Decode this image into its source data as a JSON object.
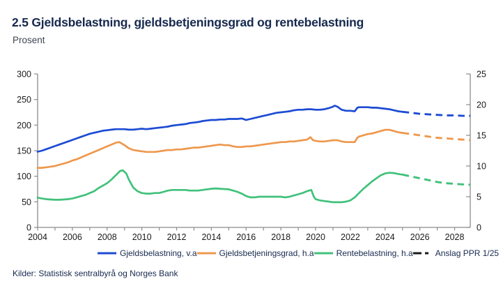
{
  "header": {
    "title": "2.5 Gjeldsbelastning, gjeldsbetjeningsgrad og rentebelastning",
    "subtitle": "Prosent"
  },
  "footer": {
    "source": "Kilder: Statistisk sentralbyrå og Norges Bank"
  },
  "colors": {
    "debt_burden_blue": "#1C4BD4",
    "debt_service_orange": "#EE984E",
    "interest_burden_green": "#41C17B",
    "forecast_black": "#1A1A1A",
    "axis_gray": "#8C8C8C",
    "text_navy": "#17294E"
  },
  "chart_data": {
    "type": "line",
    "title": "2.5 Gjeldsbelastning, gjeldsbetjeningsgrad og rentebelastning",
    "subtitle": "Prosent",
    "grid": false,
    "legend_position": "bottom",
    "x_axis": {
      "min": 2004,
      "max": 2028.9,
      "tick_labels": [
        2004,
        2006,
        2008,
        2010,
        2012,
        2014,
        2016,
        2018,
        2020,
        2022,
        2024,
        2026,
        2028
      ]
    },
    "y_axis_left": {
      "min": 0,
      "max": 300,
      "tick_labels": [
        300,
        250,
        200,
        150,
        100,
        50,
        0
      ]
    },
    "y_axis_right": {
      "min": 0,
      "max": 25,
      "tick_labels": [
        25,
        20,
        15,
        10,
        5,
        0
      ]
    },
    "forecast_start": 2025,
    "forecast_label": "Anslag PPR 1/25",
    "legend": [
      {
        "label": "Gjeldsbelastning, v.a",
        "color": "#1C4BD4",
        "style": "solid"
      },
      {
        "label": "Gjeldsbetjeningsgrad, h.a",
        "color": "#EE984E",
        "style": "solid"
      },
      {
        "label": "Rentebelastning, h.a",
        "color": "#41C17B",
        "style": "solid"
      },
      {
        "label": "Anslag PPR 1/25",
        "color": "#1A1A1A",
        "style": "dashed"
      }
    ],
    "series": [
      {
        "name": "Gjeldsbelastning, v.a",
        "axis": "left",
        "color": "#1C4BD4",
        "solid": [
          [
            2004,
            148
          ],
          [
            2004.25,
            150
          ],
          [
            2004.5,
            153
          ],
          [
            2004.75,
            156
          ],
          [
            2005,
            159
          ],
          [
            2005.25,
            162
          ],
          [
            2005.5,
            165
          ],
          [
            2005.75,
            168
          ],
          [
            2006,
            171
          ],
          [
            2006.25,
            174
          ],
          [
            2006.5,
            177
          ],
          [
            2006.75,
            180
          ],
          [
            2007,
            183
          ],
          [
            2007.25,
            185
          ],
          [
            2007.5,
            187
          ],
          [
            2007.75,
            189
          ],
          [
            2008,
            190
          ],
          [
            2008.25,
            191
          ],
          [
            2008.5,
            192
          ],
          [
            2008.75,
            192
          ],
          [
            2009,
            192
          ],
          [
            2009.25,
            191
          ],
          [
            2009.5,
            191
          ],
          [
            2009.75,
            192
          ],
          [
            2010,
            193
          ],
          [
            2010.25,
            192
          ],
          [
            2010.5,
            193
          ],
          [
            2010.75,
            194
          ],
          [
            2011,
            195
          ],
          [
            2011.25,
            196
          ],
          [
            2011.5,
            197
          ],
          [
            2011.75,
            199
          ],
          [
            2012,
            200
          ],
          [
            2012.25,
            201
          ],
          [
            2012.5,
            202
          ],
          [
            2012.75,
            204
          ],
          [
            2013,
            205
          ],
          [
            2013.25,
            206
          ],
          [
            2013.5,
            208
          ],
          [
            2013.75,
            209
          ],
          [
            2014,
            210
          ],
          [
            2014.25,
            210
          ],
          [
            2014.5,
            211
          ],
          [
            2014.75,
            211
          ],
          [
            2015,
            212
          ],
          [
            2015.25,
            212
          ],
          [
            2015.5,
            212
          ],
          [
            2015.75,
            213
          ],
          [
            2016,
            210
          ],
          [
            2016.25,
            212
          ],
          [
            2016.5,
            214
          ],
          [
            2016.75,
            216
          ],
          [
            2017,
            218
          ],
          [
            2017.25,
            220
          ],
          [
            2017.5,
            222
          ],
          [
            2017.75,
            224
          ],
          [
            2018,
            225
          ],
          [
            2018.25,
            226
          ],
          [
            2018.5,
            227
          ],
          [
            2018.75,
            229
          ],
          [
            2019,
            230
          ],
          [
            2019.25,
            230
          ],
          [
            2019.5,
            231
          ],
          [
            2019.75,
            231
          ],
          [
            2020,
            230
          ],
          [
            2020.25,
            230
          ],
          [
            2020.5,
            231
          ],
          [
            2020.75,
            233
          ],
          [
            2021,
            236
          ],
          [
            2021.1,
            238
          ],
          [
            2021.25,
            236
          ],
          [
            2021.5,
            230
          ],
          [
            2021.75,
            228
          ],
          [
            2022,
            228
          ],
          [
            2022.25,
            227
          ],
          [
            2022.4,
            234
          ],
          [
            2022.5,
            235
          ],
          [
            2022.75,
            235
          ],
          [
            2023,
            235
          ],
          [
            2023.25,
            234
          ],
          [
            2023.5,
            234
          ],
          [
            2023.75,
            233
          ],
          [
            2024,
            232
          ],
          [
            2024.25,
            231
          ],
          [
            2024.5,
            229
          ],
          [
            2024.75,
            227
          ],
          [
            2025,
            226
          ]
        ],
        "dashed": [
          [
            2025,
            226
          ],
          [
            2025.5,
            224
          ],
          [
            2026,
            222
          ],
          [
            2026.5,
            221
          ],
          [
            2027,
            220
          ],
          [
            2027.5,
            219
          ],
          [
            2028,
            219
          ],
          [
            2028.5,
            218
          ],
          [
            2028.9,
            218
          ]
        ]
      },
      {
        "name": "Gjeldsbetjeningsgrad, h.a",
        "axis": "right",
        "color": "#EE984E",
        "solid": [
          [
            2004,
            9.7
          ],
          [
            2004.25,
            9.7
          ],
          [
            2004.5,
            9.8
          ],
          [
            2004.75,
            9.9
          ],
          [
            2005,
            10.0
          ],
          [
            2005.25,
            10.2
          ],
          [
            2005.5,
            10.4
          ],
          [
            2005.75,
            10.6
          ],
          [
            2006,
            10.9
          ],
          [
            2006.25,
            11.1
          ],
          [
            2006.5,
            11.4
          ],
          [
            2006.75,
            11.7
          ],
          [
            2007,
            12.0
          ],
          [
            2007.25,
            12.3
          ],
          [
            2007.5,
            12.6
          ],
          [
            2007.75,
            12.9
          ],
          [
            2008,
            13.2
          ],
          [
            2008.25,
            13.5
          ],
          [
            2008.5,
            13.8
          ],
          [
            2008.7,
            13.9
          ],
          [
            2009,
            13.4
          ],
          [
            2009.25,
            12.9
          ],
          [
            2009.5,
            12.6
          ],
          [
            2009.75,
            12.5
          ],
          [
            2010,
            12.4
          ],
          [
            2010.25,
            12.3
          ],
          [
            2010.5,
            12.3
          ],
          [
            2010.75,
            12.3
          ],
          [
            2011,
            12.4
          ],
          [
            2011.25,
            12.5
          ],
          [
            2011.5,
            12.6
          ],
          [
            2011.75,
            12.6
          ],
          [
            2012,
            12.7
          ],
          [
            2012.25,
            12.7
          ],
          [
            2012.5,
            12.8
          ],
          [
            2012.75,
            12.9
          ],
          [
            2013,
            13.0
          ],
          [
            2013.25,
            13.0
          ],
          [
            2013.5,
            13.1
          ],
          [
            2013.75,
            13.2
          ],
          [
            2014,
            13.3
          ],
          [
            2014.25,
            13.4
          ],
          [
            2014.5,
            13.5
          ],
          [
            2014.75,
            13.4
          ],
          [
            2015,
            13.4
          ],
          [
            2015.25,
            13.2
          ],
          [
            2015.5,
            13.1
          ],
          [
            2015.75,
            13.1
          ],
          [
            2016,
            13.2
          ],
          [
            2016.25,
            13.2
          ],
          [
            2016.5,
            13.3
          ],
          [
            2016.75,
            13.4
          ],
          [
            2017,
            13.5
          ],
          [
            2017.25,
            13.6
          ],
          [
            2017.5,
            13.7
          ],
          [
            2017.75,
            13.8
          ],
          [
            2018,
            13.9
          ],
          [
            2018.25,
            13.9
          ],
          [
            2018.5,
            14.0
          ],
          [
            2018.75,
            14.0
          ],
          [
            2019,
            14.1
          ],
          [
            2019.25,
            14.2
          ],
          [
            2019.5,
            14.3
          ],
          [
            2019.7,
            14.7
          ],
          [
            2019.85,
            14.2
          ],
          [
            2020,
            14.1
          ],
          [
            2020.25,
            14.0
          ],
          [
            2020.5,
            14.0
          ],
          [
            2020.75,
            14.1
          ],
          [
            2021,
            14.2
          ],
          [
            2021.25,
            14.2
          ],
          [
            2021.5,
            14.0
          ],
          [
            2021.75,
            13.9
          ],
          [
            2022,
            13.9
          ],
          [
            2022.25,
            13.9
          ],
          [
            2022.4,
            14.6
          ],
          [
            2022.5,
            14.8
          ],
          [
            2022.75,
            15.0
          ],
          [
            2023,
            15.2
          ],
          [
            2023.25,
            15.3
          ],
          [
            2023.5,
            15.5
          ],
          [
            2023.75,
            15.7
          ],
          [
            2024,
            15.9
          ],
          [
            2024.25,
            15.9
          ],
          [
            2024.5,
            15.7
          ],
          [
            2024.75,
            15.5
          ],
          [
            2025,
            15.4
          ]
        ],
        "dashed": [
          [
            2025,
            15.4
          ],
          [
            2025.5,
            15.2
          ],
          [
            2026,
            15.0
          ],
          [
            2026.5,
            14.8
          ],
          [
            2027,
            14.6
          ],
          [
            2027.5,
            14.5
          ],
          [
            2028,
            14.4
          ],
          [
            2028.5,
            14.3
          ],
          [
            2028.9,
            14.2
          ]
        ]
      },
      {
        "name": "Rentebelastning, h.a",
        "axis": "right",
        "color": "#41C17B",
        "solid": [
          [
            2004,
            4.85
          ],
          [
            2004.25,
            4.7
          ],
          [
            2004.5,
            4.6
          ],
          [
            2004.75,
            4.55
          ],
          [
            2005,
            4.5
          ],
          [
            2005.25,
            4.5
          ],
          [
            2005.5,
            4.55
          ],
          [
            2005.75,
            4.6
          ],
          [
            2006,
            4.7
          ],
          [
            2006.25,
            4.9
          ],
          [
            2006.5,
            5.1
          ],
          [
            2006.75,
            5.3
          ],
          [
            2007,
            5.6
          ],
          [
            2007.25,
            5.9
          ],
          [
            2007.5,
            6.4
          ],
          [
            2007.75,
            6.8
          ],
          [
            2008,
            7.2
          ],
          [
            2008.25,
            7.8
          ],
          [
            2008.5,
            8.5
          ],
          [
            2008.75,
            9.2
          ],
          [
            2008.9,
            9.3
          ],
          [
            2009.1,
            8.8
          ],
          [
            2009.25,
            7.8
          ],
          [
            2009.5,
            6.5
          ],
          [
            2009.75,
            5.9
          ],
          [
            2010,
            5.6
          ],
          [
            2010.25,
            5.5
          ],
          [
            2010.5,
            5.5
          ],
          [
            2010.75,
            5.6
          ],
          [
            2011,
            5.6
          ],
          [
            2011.25,
            5.8
          ],
          [
            2011.5,
            6.0
          ],
          [
            2011.75,
            6.1
          ],
          [
            2012,
            6.1
          ],
          [
            2012.25,
            6.1
          ],
          [
            2012.5,
            6.1
          ],
          [
            2012.75,
            6.0
          ],
          [
            2013,
            6.0
          ],
          [
            2013.25,
            6.0
          ],
          [
            2013.5,
            6.1
          ],
          [
            2013.75,
            6.2
          ],
          [
            2014,
            6.3
          ],
          [
            2014.25,
            6.35
          ],
          [
            2014.5,
            6.3
          ],
          [
            2014.75,
            6.25
          ],
          [
            2015,
            6.2
          ],
          [
            2015.25,
            6.0
          ],
          [
            2015.5,
            5.8
          ],
          [
            2015.75,
            5.5
          ],
          [
            2016,
            5.1
          ],
          [
            2016.25,
            4.9
          ],
          [
            2016.5,
            4.9
          ],
          [
            2016.75,
            5.0
          ],
          [
            2017,
            5.0
          ],
          [
            2017.25,
            5.0
          ],
          [
            2017.5,
            5.0
          ],
          [
            2017.75,
            5.0
          ],
          [
            2018,
            5.0
          ],
          [
            2018.25,
            4.9
          ],
          [
            2018.5,
            5.0
          ],
          [
            2018.75,
            5.2
          ],
          [
            2019,
            5.4
          ],
          [
            2019.25,
            5.6
          ],
          [
            2019.5,
            5.9
          ],
          [
            2019.75,
            6.1
          ],
          [
            2019.9,
            5.0
          ],
          [
            2020,
            4.6
          ],
          [
            2020.25,
            4.4
          ],
          [
            2020.5,
            4.3
          ],
          [
            2020.75,
            4.2
          ],
          [
            2021,
            4.1
          ],
          [
            2021.25,
            4.1
          ],
          [
            2021.5,
            4.1
          ],
          [
            2021.75,
            4.2
          ],
          [
            2022,
            4.4
          ],
          [
            2022.25,
            4.9
          ],
          [
            2022.5,
            5.6
          ],
          [
            2022.75,
            6.3
          ],
          [
            2023,
            6.9
          ],
          [
            2023.25,
            7.5
          ],
          [
            2023.5,
            8.0
          ],
          [
            2023.75,
            8.5
          ],
          [
            2024,
            8.8
          ],
          [
            2024.25,
            8.9
          ],
          [
            2024.5,
            8.85
          ],
          [
            2024.75,
            8.7
          ],
          [
            2025,
            8.6
          ]
        ],
        "dashed": [
          [
            2025,
            8.6
          ],
          [
            2025.5,
            8.3
          ],
          [
            2026,
            8.0
          ],
          [
            2026.5,
            7.7
          ],
          [
            2027,
            7.4
          ],
          [
            2027.5,
            7.2
          ],
          [
            2028,
            7.1
          ],
          [
            2028.5,
            7.0
          ],
          [
            2028.9,
            6.95
          ]
        ]
      }
    ]
  }
}
